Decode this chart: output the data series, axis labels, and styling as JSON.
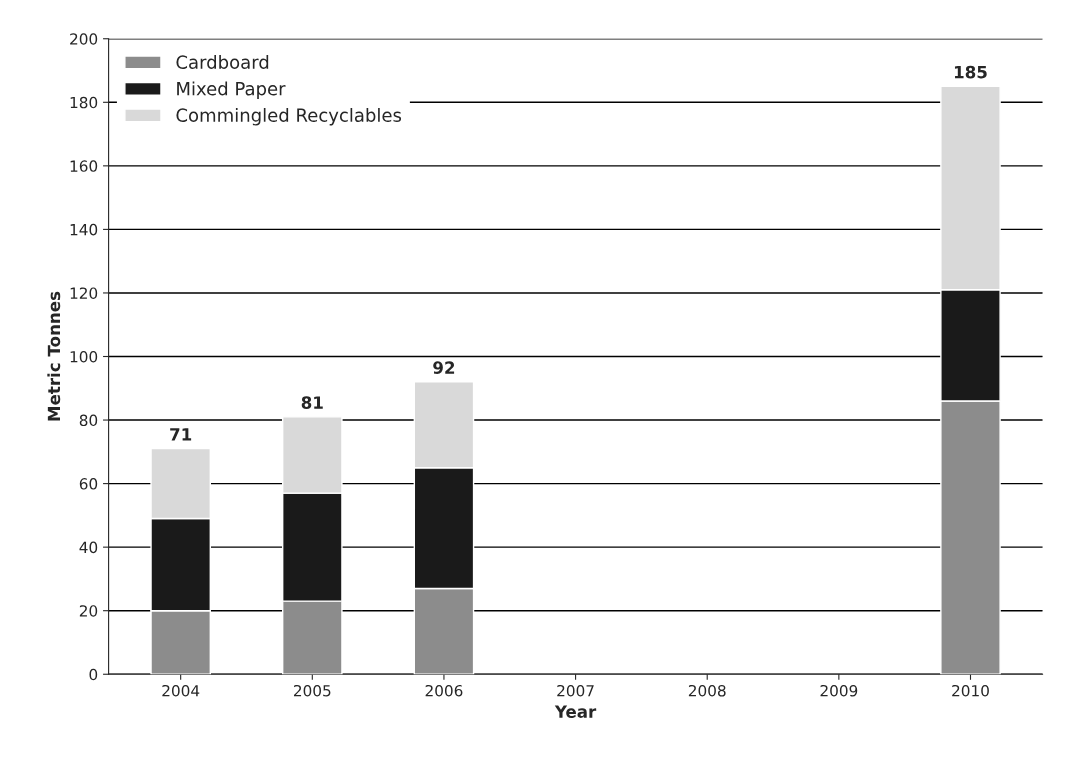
{
  "chart_data": {
    "type": "bar",
    "stacked": true,
    "xlabel": "Year",
    "ylabel": "Metric Tonnes",
    "categories": [
      "2004",
      "2005",
      "2006",
      "2007",
      "2008",
      "2009",
      "2010"
    ],
    "series": [
      {
        "name": "Cardboard",
        "color": "#8c8c8c",
        "values": [
          20,
          23,
          27,
          null,
          null,
          null,
          86
        ]
      },
      {
        "name": "Mixed Paper",
        "color": "#1a1a1a",
        "values": [
          29,
          34,
          38,
          null,
          null,
          null,
          35
        ]
      },
      {
        "name": "Commingled Recyclables",
        "color": "#d9d9d9",
        "values": [
          22,
          24,
          27,
          null,
          null,
          null,
          64
        ]
      }
    ],
    "totals": [
      "71",
      "81",
      "92",
      null,
      null,
      null,
      "185"
    ],
    "ylim": [
      0,
      200
    ],
    "yticks": [
      0,
      20,
      40,
      60,
      80,
      100,
      120,
      140,
      160,
      180,
      200
    ],
    "grid": "y",
    "legend": "top left"
  }
}
